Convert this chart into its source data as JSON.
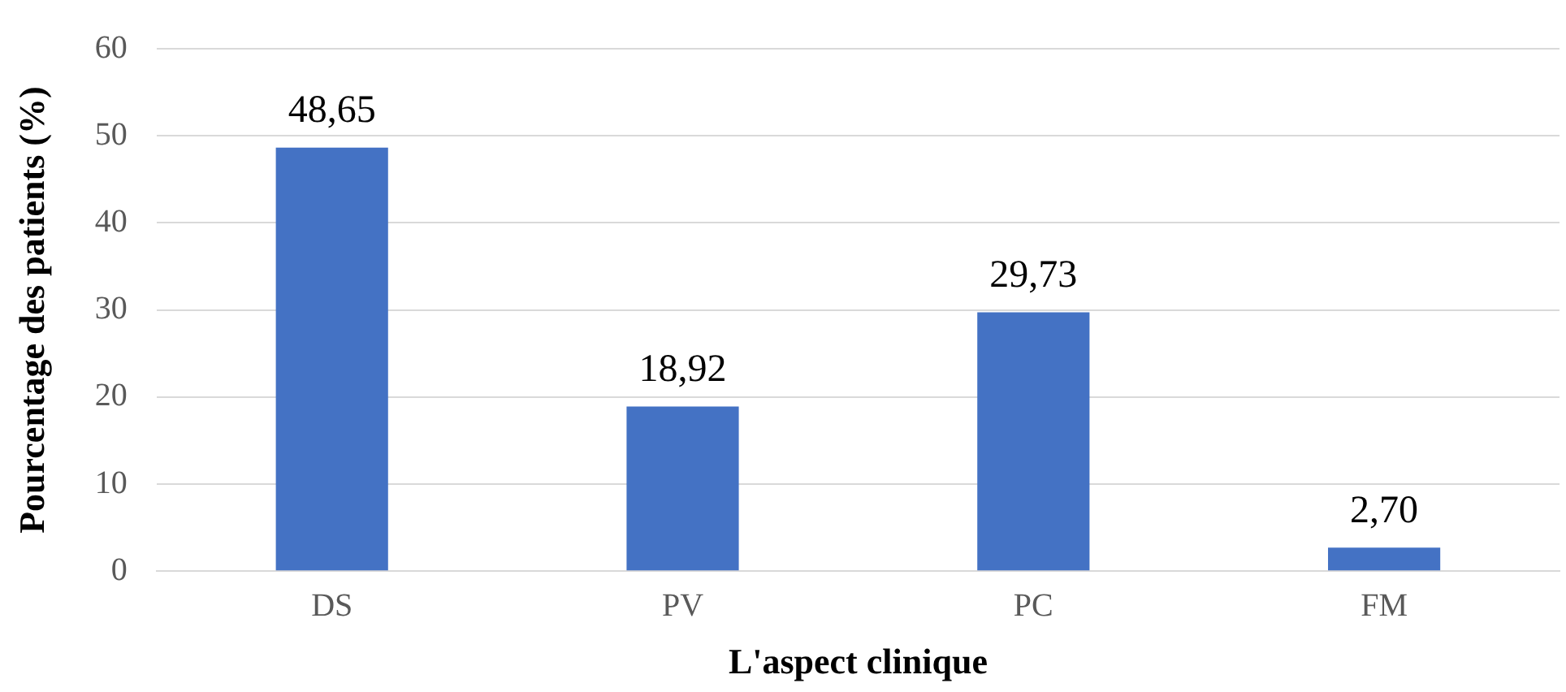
{
  "chart_data": {
    "type": "bar",
    "xlabel": "L'aspect clinique",
    "ylabel": "Pourcentage des patients (%)",
    "categories": [
      "DS",
      "PV",
      "PC",
      "FM"
    ],
    "values": [
      48.65,
      18.92,
      29.73,
      2.7
    ],
    "value_labels": [
      "48,65",
      "18,92",
      "29,73",
      "2,70"
    ],
    "color": "#4472c4",
    "ylim": [
      0,
      60
    ],
    "yticks": [
      0,
      10,
      20,
      30,
      40,
      50,
      60
    ],
    "grid": "y",
    "legend": false
  }
}
